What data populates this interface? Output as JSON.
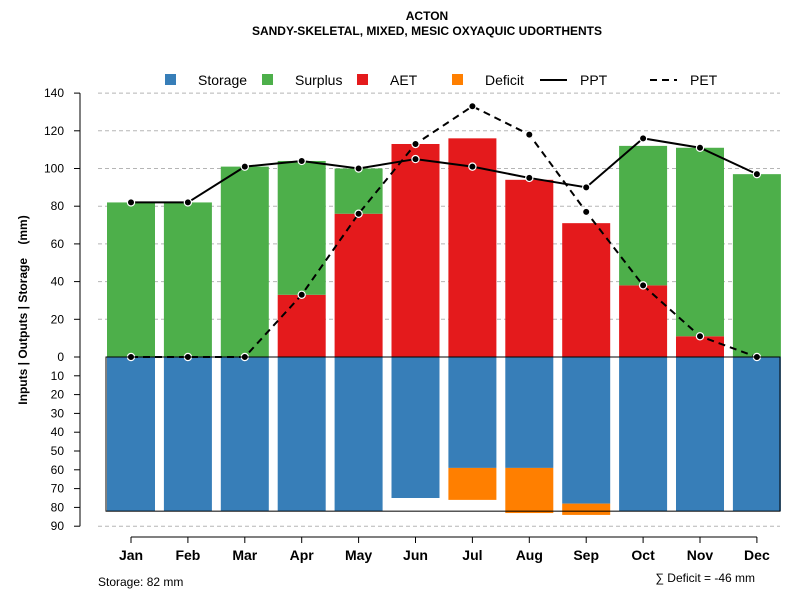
{
  "chart_data": {
    "type": "bar",
    "title": "ACTON",
    "subtitle": "SANDY-SKELETAL, MIXED, MESIC OXYAQUIC UDORTHENTS",
    "ylabel": "Inputs | Outputs | Storage    (mm)",
    "categories": [
      "Jan",
      "Feb",
      "Mar",
      "Apr",
      "May",
      "Jun",
      "Jul",
      "Aug",
      "Sep",
      "Oct",
      "Nov",
      "Dec"
    ],
    "ylim": [
      -90,
      140
    ],
    "yticks_upper": [
      0,
      20,
      40,
      60,
      80,
      100,
      120,
      140
    ],
    "yticks_lower": [
      10,
      20,
      30,
      40,
      50,
      60,
      70,
      80,
      90
    ],
    "legend": [
      {
        "label": "Storage",
        "kind": "box",
        "color": "#377EB8"
      },
      {
        "label": "Surplus",
        "kind": "box",
        "color": "#4DAF4A"
      },
      {
        "label": "AET",
        "kind": "box",
        "color": "#E41A1C"
      },
      {
        "label": "Deficit",
        "kind": "box",
        "color": "#FF7F00"
      },
      {
        "label": "PPT",
        "kind": "solid",
        "color": "#000000"
      },
      {
        "label": "PET",
        "kind": "dashed",
        "color": "#000000"
      }
    ],
    "series": [
      {
        "name": "AET",
        "color": "#E41A1C",
        "values": [
          0,
          0,
          0,
          33,
          76,
          113,
          116,
          94,
          71,
          38,
          11,
          0
        ]
      },
      {
        "name": "Surplus",
        "color": "#4DAF4A",
        "values": [
          82,
          82,
          101,
          71,
          24,
          0,
          0,
          0,
          0,
          74,
          100,
          97
        ]
      },
      {
        "name": "Storage",
        "color": "#377EB8",
        "values": [
          82,
          82,
          82,
          82,
          82,
          75,
          59,
          59,
          78,
          82,
          82,
          82
        ]
      },
      {
        "name": "Deficit",
        "color": "#FF7F00",
        "values": [
          0,
          0,
          0,
          0,
          0,
          0,
          17,
          24,
          6,
          0,
          0,
          0
        ]
      },
      {
        "name": "PPT",
        "color": "#000000",
        "values": [
          82,
          82,
          101,
          104,
          100,
          105,
          101,
          95,
          90,
          116,
          111,
          97
        ]
      },
      {
        "name": "PET",
        "color": "#000000",
        "values": [
          0,
          0,
          0,
          33,
          76,
          113,
          133,
          118,
          77,
          38,
          11,
          0
        ]
      }
    ],
    "storage_capacity": 82,
    "footer_left": "Storage: 82 mm",
    "footer_right": "∑ Deficit = -46 mm"
  }
}
